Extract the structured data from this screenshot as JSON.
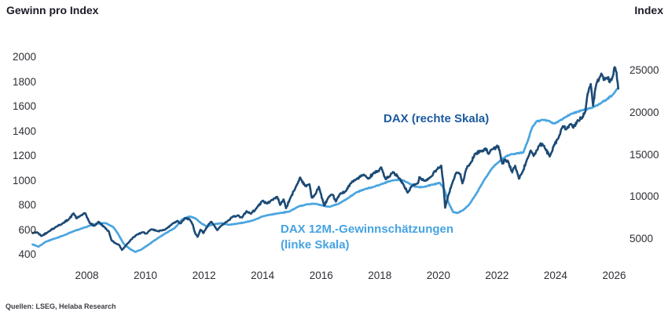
{
  "source": "Quellen: LSEG, Helaba Research",
  "colors": {
    "dax_line": "#1c4a75",
    "estimates_line": "#4aa5e0",
    "dax_label": "#1b5a9e",
    "estimates_label": "#45a3e2",
    "text": "#1b1b28",
    "tick_text": "#2e2e36"
  },
  "chart_data": {
    "type": "line",
    "grid": false,
    "legend": "inline-annotations",
    "x_axis": {
      "unit": "year",
      "ticks": [
        2008,
        2010,
        2012,
        2014,
        2016,
        2018,
        2020,
        2022,
        2024,
        2026
      ],
      "range": [
        2006.1,
        2026.3
      ]
    },
    "left_axis": {
      "title": "Gewinn pro Index",
      "ticks": [
        2000,
        1800,
        1600,
        1400,
        1200,
        1000,
        800,
        600,
        400
      ],
      "range": [
        380,
        2080
      ]
    },
    "right_axis": {
      "title": "Index",
      "ticks": [
        25000,
        20000,
        15000,
        10000,
        5000
      ],
      "range": [
        2500,
        26500
      ]
    },
    "series": [
      {
        "name": "DAX",
        "label": "DAX (rechte Skala)",
        "scale": "right",
        "color": "#1c4a75",
        "points": [
          [
            2006.15,
            5700
          ],
          [
            2006.3,
            5800
          ],
          [
            2006.45,
            5350
          ],
          [
            2006.7,
            5900
          ],
          [
            2006.95,
            6450
          ],
          [
            2007.2,
            6900
          ],
          [
            2007.4,
            7400
          ],
          [
            2007.55,
            8050
          ],
          [
            2007.65,
            7450
          ],
          [
            2007.8,
            7800
          ],
          [
            2007.95,
            8050
          ],
          [
            2008.1,
            6900
          ],
          [
            2008.25,
            6550
          ],
          [
            2008.4,
            7050
          ],
          [
            2008.6,
            6400
          ],
          [
            2008.75,
            5900
          ],
          [
            2008.85,
            4800
          ],
          [
            2009.0,
            4450
          ],
          [
            2009.1,
            4300
          ],
          [
            2009.2,
            3700
          ],
          [
            2009.35,
            4300
          ],
          [
            2009.5,
            4900
          ],
          [
            2009.7,
            5500
          ],
          [
            2009.9,
            5800
          ],
          [
            2010.05,
            5650
          ],
          [
            2010.2,
            6150
          ],
          [
            2010.4,
            5950
          ],
          [
            2010.55,
            6000
          ],
          [
            2010.75,
            6300
          ],
          [
            2010.95,
            6900
          ],
          [
            2011.1,
            7150
          ],
          [
            2011.2,
            6850
          ],
          [
            2011.35,
            7500
          ],
          [
            2011.5,
            7350
          ],
          [
            2011.62,
            6700
          ],
          [
            2011.7,
            5650
          ],
          [
            2011.78,
            5250
          ],
          [
            2011.88,
            6100
          ],
          [
            2011.98,
            5700
          ],
          [
            2012.15,
            6700
          ],
          [
            2012.25,
            7050
          ],
          [
            2012.45,
            6050
          ],
          [
            2012.6,
            6600
          ],
          [
            2012.8,
            7100
          ],
          [
            2013.0,
            7700
          ],
          [
            2013.15,
            7800
          ],
          [
            2013.3,
            7550
          ],
          [
            2013.45,
            8300
          ],
          [
            2013.6,
            8000
          ],
          [
            2013.8,
            8700
          ],
          [
            2014.0,
            9550
          ],
          [
            2014.15,
            9200
          ],
          [
            2014.3,
            9600
          ],
          [
            2014.5,
            10000
          ],
          [
            2014.6,
            9050
          ],
          [
            2014.72,
            9700
          ],
          [
            2014.8,
            8650
          ],
          [
            2014.95,
            9900
          ],
          [
            2015.1,
            10900
          ],
          [
            2015.28,
            12300
          ],
          [
            2015.45,
            11300
          ],
          [
            2015.6,
            11500
          ],
          [
            2015.68,
            9900
          ],
          [
            2015.8,
            10300
          ],
          [
            2015.92,
            11200
          ],
          [
            2016.1,
            8950
          ],
          [
            2016.25,
            9950
          ],
          [
            2016.4,
            10250
          ],
          [
            2016.5,
            9450
          ],
          [
            2016.65,
            10400
          ],
          [
            2016.85,
            10700
          ],
          [
            2017.0,
            11600
          ],
          [
            2017.2,
            12100
          ],
          [
            2017.45,
            12650
          ],
          [
            2017.6,
            12150
          ],
          [
            2017.8,
            12900
          ],
          [
            2017.95,
            13050
          ],
          [
            2018.05,
            13500
          ],
          [
            2018.2,
            12100
          ],
          [
            2018.35,
            12450
          ],
          [
            2018.45,
            12950
          ],
          [
            2018.65,
            12250
          ],
          [
            2018.8,
            11500
          ],
          [
            2018.95,
            10500
          ],
          [
            2019.1,
            11300
          ],
          [
            2019.3,
            11600
          ],
          [
            2019.35,
            12350
          ],
          [
            2019.55,
            11900
          ],
          [
            2019.75,
            12400
          ],
          [
            2019.95,
            13250
          ],
          [
            2020.1,
            13700
          ],
          [
            2020.17,
            11500
          ],
          [
            2020.23,
            8700
          ],
          [
            2020.35,
            10300
          ],
          [
            2020.5,
            11900
          ],
          [
            2020.62,
            12900
          ],
          [
            2020.75,
            12700
          ],
          [
            2020.82,
            11600
          ],
          [
            2020.95,
            13300
          ],
          [
            2021.1,
            14000
          ],
          [
            2021.25,
            15100
          ],
          [
            2021.45,
            15450
          ],
          [
            2021.6,
            15750
          ],
          [
            2021.72,
            15100
          ],
          [
            2021.85,
            15650
          ],
          [
            2021.98,
            15900
          ],
          [
            2022.05,
            16000
          ],
          [
            2022.18,
            13950
          ],
          [
            2022.28,
            14450
          ],
          [
            2022.4,
            14050
          ],
          [
            2022.52,
            12900
          ],
          [
            2022.62,
            13700
          ],
          [
            2022.75,
            12150
          ],
          [
            2022.88,
            13000
          ],
          [
            2023.0,
            14200
          ],
          [
            2023.15,
            15500
          ],
          [
            2023.25,
            14850
          ],
          [
            2023.45,
            16100
          ],
          [
            2023.55,
            16300
          ],
          [
            2023.65,
            15700
          ],
          [
            2023.8,
            14800
          ],
          [
            2023.95,
            16200
          ],
          [
            2024.1,
            17000
          ],
          [
            2024.25,
            18400
          ],
          [
            2024.35,
            18000
          ],
          [
            2024.5,
            18600
          ],
          [
            2024.6,
            18200
          ],
          [
            2024.75,
            19100
          ],
          [
            2024.9,
            19300
          ],
          [
            2025.02,
            20200
          ],
          [
            2025.1,
            22300
          ],
          [
            2025.2,
            23400
          ],
          [
            2025.28,
            20800
          ],
          [
            2025.38,
            23200
          ],
          [
            2025.5,
            24200
          ],
          [
            2025.58,
            24550
          ],
          [
            2025.68,
            23900
          ],
          [
            2025.78,
            24200
          ],
          [
            2025.85,
            23600
          ],
          [
            2025.95,
            24300
          ],
          [
            2026.02,
            25400
          ],
          [
            2026.08,
            24800
          ],
          [
            2026.14,
            22850
          ]
        ]
      },
      {
        "name": "DAX 12M.-Gewinnschätzungen",
        "label_line1": "DAX 12M.-Gewinnschätzungen",
        "label_line2": "(linke Skala)",
        "scale": "left",
        "color": "#4aa5e0",
        "points": [
          [
            2006.15,
            483
          ],
          [
            2006.35,
            465
          ],
          [
            2006.6,
            505
          ],
          [
            2006.9,
            530
          ],
          [
            2007.2,
            555
          ],
          [
            2007.5,
            585
          ],
          [
            2007.8,
            610
          ],
          [
            2008.1,
            635
          ],
          [
            2008.4,
            652
          ],
          [
            2008.65,
            655
          ],
          [
            2008.9,
            625
          ],
          [
            2009.05,
            575
          ],
          [
            2009.25,
            490
          ],
          [
            2009.45,
            450
          ],
          [
            2009.65,
            422
          ],
          [
            2009.85,
            440
          ],
          [
            2010.1,
            480
          ],
          [
            2010.4,
            530
          ],
          [
            2010.7,
            575
          ],
          [
            2011.0,
            615
          ],
          [
            2011.25,
            685
          ],
          [
            2011.5,
            710
          ],
          [
            2011.7,
            695
          ],
          [
            2011.9,
            655
          ],
          [
            2012.1,
            628
          ],
          [
            2012.35,
            648
          ],
          [
            2012.6,
            655
          ],
          [
            2012.85,
            642
          ],
          [
            2013.1,
            650
          ],
          [
            2013.4,
            662
          ],
          [
            2013.7,
            680
          ],
          [
            2014.0,
            710
          ],
          [
            2014.3,
            725
          ],
          [
            2014.6,
            738
          ],
          [
            2014.9,
            748
          ],
          [
            2015.2,
            788
          ],
          [
            2015.5,
            808
          ],
          [
            2015.8,
            812
          ],
          [
            2016.05,
            798
          ],
          [
            2016.3,
            788
          ],
          [
            2016.6,
            812
          ],
          [
            2016.9,
            855
          ],
          [
            2017.2,
            905
          ],
          [
            2017.5,
            932
          ],
          [
            2017.8,
            950
          ],
          [
            2018.1,
            975
          ],
          [
            2018.4,
            1000
          ],
          [
            2018.7,
            1008
          ],
          [
            2018.95,
            985
          ],
          [
            2019.2,
            950
          ],
          [
            2019.5,
            948
          ],
          [
            2019.8,
            968
          ],
          [
            2020.05,
            982
          ],
          [
            2020.2,
            930
          ],
          [
            2020.35,
            820
          ],
          [
            2020.5,
            745
          ],
          [
            2020.65,
            738
          ],
          [
            2020.85,
            762
          ],
          [
            2021.05,
            805
          ],
          [
            2021.3,
            895
          ],
          [
            2021.55,
            1000
          ],
          [
            2021.8,
            1090
          ],
          [
            2021.95,
            1130
          ],
          [
            2022.1,
            1160
          ],
          [
            2022.3,
            1195
          ],
          [
            2022.5,
            1215
          ],
          [
            2022.7,
            1222
          ],
          [
            2022.9,
            1228
          ],
          [
            2023.05,
            1320
          ],
          [
            2023.2,
            1430
          ],
          [
            2023.35,
            1480
          ],
          [
            2023.55,
            1492
          ],
          [
            2023.75,
            1485
          ],
          [
            2023.95,
            1462
          ],
          [
            2024.15,
            1488
          ],
          [
            2024.35,
            1515
          ],
          [
            2024.55,
            1542
          ],
          [
            2024.75,
            1558
          ],
          [
            2024.95,
            1572
          ],
          [
            2025.15,
            1585
          ],
          [
            2025.35,
            1602
          ],
          [
            2025.55,
            1628
          ],
          [
            2025.75,
            1658
          ],
          [
            2025.95,
            1695
          ],
          [
            2026.14,
            1752
          ]
        ]
      }
    ]
  }
}
